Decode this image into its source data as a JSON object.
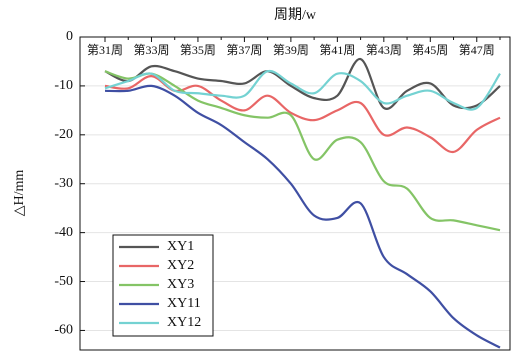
{
  "chart_data": {
    "type": "line",
    "title": "周期/w",
    "y_label": "△H/mm",
    "categories": [
      "第31周",
      null,
      "第33周",
      null,
      "第35周",
      null,
      "第37周",
      null,
      "第39周",
      null,
      "第41周",
      null,
      "第43周",
      null,
      "第45周",
      null,
      "第47周",
      null
    ],
    "ylim": [
      -64,
      0
    ],
    "yticks": [
      0,
      -10,
      -20,
      -30,
      -40,
      -50,
      -60
    ],
    "grid": true,
    "series": [
      {
        "name": "XY1",
        "color": "#555555",
        "values": [
          -7,
          -9,
          -6,
          -7,
          -8.5,
          -9,
          -9.5,
          -7,
          -10,
          -12.5,
          -12,
          -4.5,
          -14.5,
          -11,
          -9.5,
          -14,
          -14,
          -10
        ]
      },
      {
        "name": "XY2",
        "color": "#e86666",
        "values": [
          -10,
          -10.5,
          -8,
          -11,
          -10,
          -13,
          -15,
          -12,
          -15.5,
          -17,
          -15,
          -13.5,
          -20,
          -18.5,
          -20.5,
          -23.5,
          -19,
          -16.5
        ]
      },
      {
        "name": "XY3",
        "color": "#84c466",
        "values": [
          -7,
          -8.5,
          -7.5,
          -10,
          -13,
          -14.5,
          -16,
          -16.5,
          -16,
          -25,
          -21,
          -21.5,
          -29.5,
          -31,
          -37,
          -37.5,
          -38.5,
          -39.5
        ]
      },
      {
        "name": "XY11",
        "color": "#3f4fa3",
        "values": [
          -11,
          -11,
          -10,
          -12,
          -15.5,
          -18,
          -21.5,
          -25,
          -30,
          -36.5,
          -37,
          -34,
          -45,
          -48.5,
          -52,
          -57.5,
          -61,
          -63.5
        ]
      },
      {
        "name": "XY12",
        "color": "#74d2d2",
        "values": [
          -10.5,
          -9,
          -7.5,
          -11,
          -11.5,
          -12,
          -12,
          -7,
          -9.5,
          -11.5,
          -7.5,
          -9,
          -13.5,
          -12,
          -11,
          -13.5,
          -14.5,
          -7.5
        ]
      }
    ]
  }
}
